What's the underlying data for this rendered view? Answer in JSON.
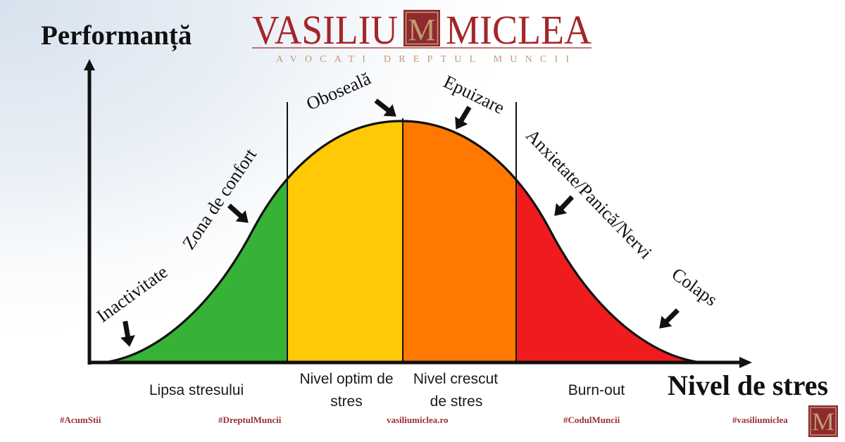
{
  "logo": {
    "name_left": "VASILIU",
    "monogram": "M",
    "name_right": "MICLEA",
    "tagline": "AVOCATI DREPTUL MUNCII",
    "brand_color": "#a3262a",
    "monogram_box_color": "#8e2b2f",
    "gold_color": "#c29a72"
  },
  "y_axis_label": "Performanță",
  "x_axis_label": "Nivel de stres",
  "curve_stages": [
    {
      "label": "Inactivitate"
    },
    {
      "label": "Zona de confort"
    },
    {
      "label": "Oboseală"
    },
    {
      "label": "Epuizare"
    },
    {
      "label": "Anxietate/Panică/Nervi"
    },
    {
      "label": "Colaps"
    }
  ],
  "zones": [
    {
      "lines": [
        "Lipsa stresului"
      ],
      "color": "#36b336"
    },
    {
      "lines": [
        "Nivel optim de",
        "stres"
      ],
      "color": "#ffc905"
    },
    {
      "lines": [
        "Nivel crescut",
        "de stres"
      ],
      "color": "#ff7900"
    },
    {
      "lines": [
        "Burn-out"
      ],
      "color": "#ef1b1f"
    }
  ],
  "footer": {
    "items": [
      "#AcumStii",
      "#DreptulMuncii",
      "vasiliumiclea.ro",
      "#CodulMuncii",
      "#vasiliumiclea"
    ],
    "text_color": "#9b2f34"
  }
}
